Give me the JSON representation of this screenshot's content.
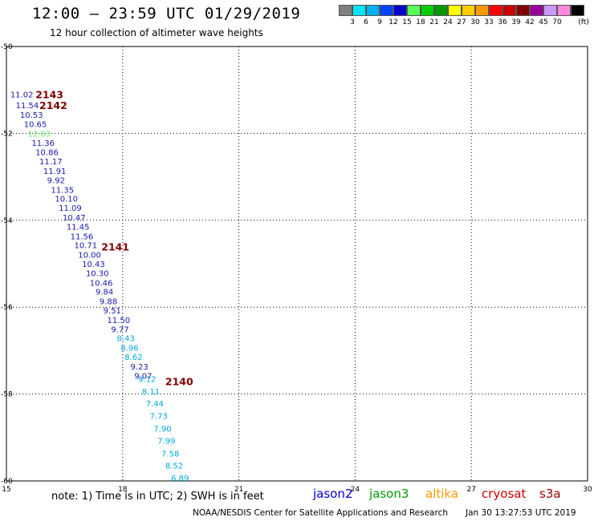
{
  "header": {
    "title": "12:00 – 23:59 UTC 01/29/2019",
    "subtitle": "12 hour collection of altimeter wave heights"
  },
  "colorbar": {
    "unit": "(ft)",
    "swatches": [
      {
        "color": "#808080",
        "label": ""
      },
      {
        "color": "#00e5ff",
        "label": "3"
      },
      {
        "color": "#00b0f0",
        "label": "6"
      },
      {
        "color": "#0044ff",
        "label": "9"
      },
      {
        "color": "#0000c8",
        "label": "12"
      },
      {
        "color": "#55ff55",
        "label": "15"
      },
      {
        "color": "#00cc00",
        "label": "18"
      },
      {
        "color": "#009900",
        "label": "21"
      },
      {
        "color": "#ffff00",
        "label": "24"
      },
      {
        "color": "#ffcc00",
        "label": "27"
      },
      {
        "color": "#ff9900",
        "label": "30"
      },
      {
        "color": "#ff0000",
        "label": "33"
      },
      {
        "color": "#c80000",
        "label": "36"
      },
      {
        "color": "#800000",
        "label": "39"
      },
      {
        "color": "#990099",
        "label": "42"
      },
      {
        "color": "#cc99ff",
        "label": "45"
      },
      {
        "color": "#ff88dd",
        "label": "70"
      },
      {
        "color": "#000000",
        "label": ""
      }
    ]
  },
  "chart_data": {
    "type": "scatter",
    "xlim": [
      15,
      30
    ],
    "ylim": [
      -60,
      -50
    ],
    "x_ticks": [
      15,
      18,
      21,
      24,
      27,
      30
    ],
    "y_ticks": [
      -50,
      -52,
      -54,
      -56,
      -58,
      -60
    ],
    "grid": true,
    "points": [
      {
        "x": 15.1,
        "y": -51.1,
        "label": "11.02",
        "color": "#1818b0"
      },
      {
        "x": 15.24,
        "y": -51.35,
        "label": "11.54",
        "color": "#1818b0"
      },
      {
        "x": 15.35,
        "y": -51.57,
        "label": "10.53",
        "color": "#1818b0"
      },
      {
        "x": 15.45,
        "y": -51.78,
        "label": "10.65",
        "color": "#1818b0"
      },
      {
        "x": 15.55,
        "y": -52.0,
        "label": "12.63",
        "color": "#66ee66"
      },
      {
        "x": 15.65,
        "y": -52.21,
        "label": "11.36",
        "color": "#1818b0"
      },
      {
        "x": 15.75,
        "y": -52.43,
        "label": "10.86",
        "color": "#1818b0"
      },
      {
        "x": 15.85,
        "y": -52.64,
        "label": "11.17",
        "color": "#1818b0"
      },
      {
        "x": 15.95,
        "y": -52.86,
        "label": "11.91",
        "color": "#1818b0"
      },
      {
        "x": 16.05,
        "y": -53.07,
        "label": "9.92",
        "color": "#1818b0"
      },
      {
        "x": 16.15,
        "y": -53.29,
        "label": "11.35",
        "color": "#1818b0"
      },
      {
        "x": 16.25,
        "y": -53.5,
        "label": "10.10",
        "color": "#1818b0"
      },
      {
        "x": 16.35,
        "y": -53.71,
        "label": "11.09",
        "color": "#1818b0"
      },
      {
        "x": 16.45,
        "y": -53.93,
        "label": "10.47",
        "color": "#1818b0"
      },
      {
        "x": 16.55,
        "y": -54.14,
        "label": "11.45",
        "color": "#1818b0"
      },
      {
        "x": 16.65,
        "y": -54.36,
        "label": "11.56",
        "color": "#1818b0"
      },
      {
        "x": 16.75,
        "y": -54.57,
        "label": "10.71",
        "color": "#1818b0"
      },
      {
        "x": 16.85,
        "y": -54.79,
        "label": "10.00",
        "color": "#1818b0"
      },
      {
        "x": 16.95,
        "y": -55.0,
        "label": "10.43",
        "color": "#1818b0"
      },
      {
        "x": 17.05,
        "y": -55.21,
        "label": "10.30",
        "color": "#1818b0"
      },
      {
        "x": 17.15,
        "y": -55.43,
        "label": "10.46",
        "color": "#1818b0"
      },
      {
        "x": 17.3,
        "y": -55.64,
        "label": "9.84",
        "color": "#1818b0"
      },
      {
        "x": 17.4,
        "y": -55.86,
        "label": "9.88",
        "color": "#1818b0"
      },
      {
        "x": 17.5,
        "y": -56.07,
        "label": "9.51",
        "color": "#1818b0"
      },
      {
        "x": 17.6,
        "y": -56.29,
        "label": "11.50",
        "color": "#1818b0"
      },
      {
        "x": 17.7,
        "y": -56.5,
        "label": "9.77",
        "color": "#1818b0"
      },
      {
        "x": 17.85,
        "y": -56.71,
        "label": "8.43",
        "color": "#00aadd"
      },
      {
        "x": 17.95,
        "y": -56.93,
        "label": "8.96",
        "color": "#00aadd"
      },
      {
        "x": 18.05,
        "y": -57.14,
        "label": "8.62",
        "color": "#00aadd"
      },
      {
        "x": 18.2,
        "y": -57.36,
        "label": "9.23",
        "color": "#1818b0"
      },
      {
        "x": 18.3,
        "y": -57.57,
        "label": "9.07",
        "color": "#1818b0"
      },
      {
        "x": 18.4,
        "y": -57.65,
        "label": "9.12",
        "color": "#00aadd"
      },
      {
        "x": 18.5,
        "y": -57.93,
        "label": "8.11",
        "color": "#00aadd"
      },
      {
        "x": 18.6,
        "y": -58.21,
        "label": "7.44",
        "color": "#00aadd"
      },
      {
        "x": 18.7,
        "y": -58.5,
        "label": "7.73",
        "color": "#00aadd"
      },
      {
        "x": 18.8,
        "y": -58.79,
        "label": "7.90",
        "color": "#00aadd"
      },
      {
        "x": 18.9,
        "y": -59.07,
        "label": "7.99",
        "color": "#00aadd"
      },
      {
        "x": 19.0,
        "y": -59.36,
        "label": "7.58",
        "color": "#00aadd"
      },
      {
        "x": 19.1,
        "y": -59.64,
        "label": "8.52",
        "color": "#00aadd"
      },
      {
        "x": 19.25,
        "y": -59.93,
        "label": "6.89",
        "color": "#00aadd"
      }
    ],
    "time_labels": [
      {
        "x": 15.75,
        "y": -51.1,
        "label": "2143"
      },
      {
        "x": 15.85,
        "y": -51.35,
        "label": "2142"
      },
      {
        "x": 17.45,
        "y": -54.6,
        "label": "2141"
      },
      {
        "x": 19.1,
        "y": -57.7,
        "label": "2140"
      }
    ],
    "time_label_color": "#800000"
  },
  "footer": {
    "note": "note:  1) Time is in UTC;  2) SWH is in feet",
    "legend": [
      {
        "label": "jason2",
        "color": "#0000cc"
      },
      {
        "label": "jason3",
        "color": "#009900"
      },
      {
        "label": "altika",
        "color": "#ff9900"
      },
      {
        "label": "cryosat",
        "color": "#cc0000"
      },
      {
        "label": "s3a",
        "color": "#990000"
      }
    ],
    "credit": "NOAA/NESDIS Center for Satellite Applications and Research",
    "date": "Jan 30 13:27:53 UTC 2019"
  }
}
